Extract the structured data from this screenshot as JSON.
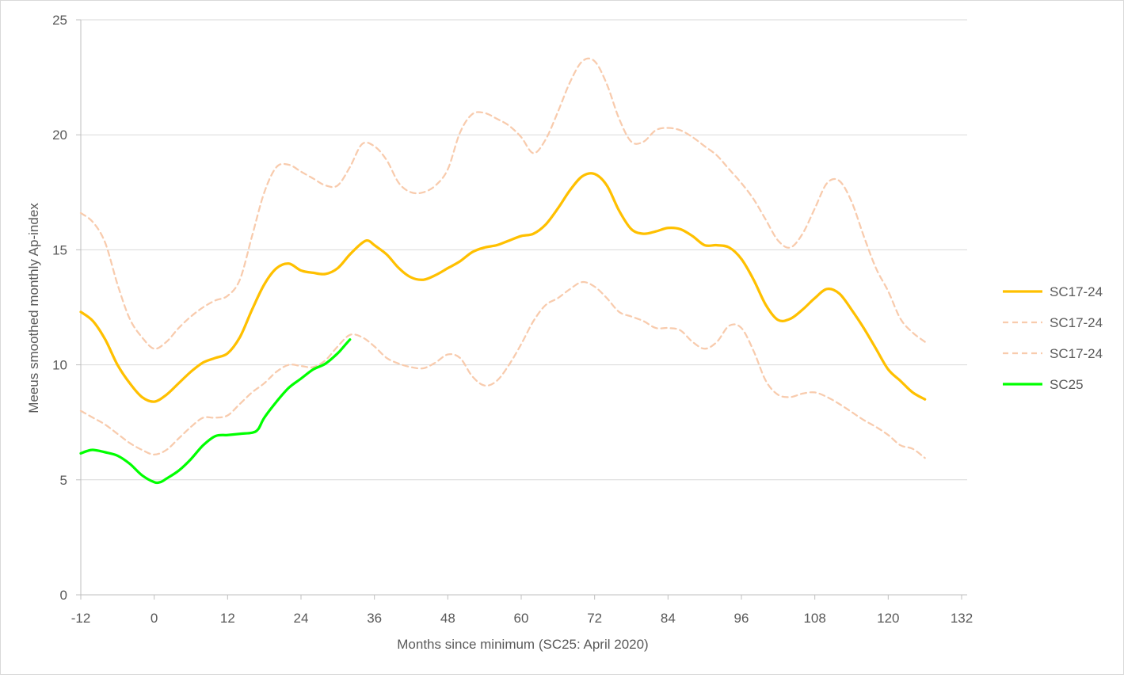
{
  "chart_data": {
    "type": "line",
    "title": "",
    "xlabel": "Months since minimum (SC25: April 2020)",
    "ylabel": "Meeus smoothed monthly Ap-index",
    "xlim": [
      -12,
      132
    ],
    "ylim": [
      0,
      25
    ],
    "x_ticks": [
      "-12",
      "0",
      "12",
      "24",
      "36",
      "48",
      "60",
      "72",
      "84",
      "96",
      "108",
      "120",
      "132"
    ],
    "x_tick_values": [
      -12,
      0,
      12,
      24,
      36,
      48,
      60,
      72,
      84,
      96,
      108,
      120,
      132
    ],
    "y_ticks": [
      "0",
      "5",
      "10",
      "15",
      "20",
      "25"
    ],
    "y_tick_values": [
      0,
      5,
      10,
      15,
      20,
      25
    ],
    "grid": "horizontal",
    "legend_position": "right",
    "series": [
      {
        "name": "SC17-24",
        "style": "solid",
        "color": "#ffc000",
        "points": [
          [
            -12,
            12.3
          ],
          [
            -10,
            11.9
          ],
          [
            -8,
            11.1
          ],
          [
            -6,
            10.0
          ],
          [
            -4,
            9.2
          ],
          [
            -2,
            8.6
          ],
          [
            0,
            8.4
          ],
          [
            2,
            8.7
          ],
          [
            4,
            9.2
          ],
          [
            6,
            9.7
          ],
          [
            8,
            10.1
          ],
          [
            10,
            10.3
          ],
          [
            12,
            10.5
          ],
          [
            14,
            11.2
          ],
          [
            16,
            12.4
          ],
          [
            18,
            13.5
          ],
          [
            20,
            14.2
          ],
          [
            22,
            14.4
          ],
          [
            24,
            14.1
          ],
          [
            26,
            14.0
          ],
          [
            28,
            13.95
          ],
          [
            30,
            14.2
          ],
          [
            32,
            14.8
          ],
          [
            34,
            15.3
          ],
          [
            35,
            15.4
          ],
          [
            36,
            15.2
          ],
          [
            38,
            14.8
          ],
          [
            40,
            14.2
          ],
          [
            42,
            13.8
          ],
          [
            44,
            13.7
          ],
          [
            46,
            13.9
          ],
          [
            48,
            14.2
          ],
          [
            50,
            14.5
          ],
          [
            52,
            14.9
          ],
          [
            54,
            15.1
          ],
          [
            56,
            15.2
          ],
          [
            58,
            15.4
          ],
          [
            60,
            15.6
          ],
          [
            62,
            15.7
          ],
          [
            64,
            16.1
          ],
          [
            66,
            16.8
          ],
          [
            68,
            17.6
          ],
          [
            70,
            18.2
          ],
          [
            72,
            18.3
          ],
          [
            74,
            17.8
          ],
          [
            76,
            16.7
          ],
          [
            78,
            15.9
          ],
          [
            80,
            15.7
          ],
          [
            82,
            15.8
          ],
          [
            84,
            15.95
          ],
          [
            86,
            15.9
          ],
          [
            88,
            15.6
          ],
          [
            90,
            15.2
          ],
          [
            92,
            15.2
          ],
          [
            94,
            15.1
          ],
          [
            96,
            14.6
          ],
          [
            98,
            13.7
          ],
          [
            100,
            12.6
          ],
          [
            102,
            11.95
          ],
          [
            104,
            12.0
          ],
          [
            106,
            12.4
          ],
          [
            108,
            12.9
          ],
          [
            110,
            13.3
          ],
          [
            112,
            13.1
          ],
          [
            114,
            12.4
          ],
          [
            116,
            11.6
          ],
          [
            118,
            10.7
          ],
          [
            120,
            9.8
          ],
          [
            122,
            9.3
          ],
          [
            124,
            8.8
          ],
          [
            126,
            8.5
          ]
        ]
      },
      {
        "name": "SC17-24",
        "style": "dashed",
        "color": "#f8cbad",
        "points": [
          [
            -12,
            16.6
          ],
          [
            -10,
            16.2
          ],
          [
            -8,
            15.3
          ],
          [
            -6,
            13.5
          ],
          [
            -4,
            12.0
          ],
          [
            -2,
            11.2
          ],
          [
            0,
            10.7
          ],
          [
            2,
            11.0
          ],
          [
            4,
            11.6
          ],
          [
            6,
            12.1
          ],
          [
            8,
            12.5
          ],
          [
            10,
            12.8
          ],
          [
            12,
            13.0
          ],
          [
            14,
            13.7
          ],
          [
            16,
            15.6
          ],
          [
            18,
            17.5
          ],
          [
            20,
            18.6
          ],
          [
            22,
            18.7
          ],
          [
            24,
            18.4
          ],
          [
            26,
            18.1
          ],
          [
            28,
            17.8
          ],
          [
            30,
            17.8
          ],
          [
            32,
            18.6
          ],
          [
            34,
            19.6
          ],
          [
            36,
            19.5
          ],
          [
            38,
            18.9
          ],
          [
            40,
            17.9
          ],
          [
            42,
            17.5
          ],
          [
            44,
            17.5
          ],
          [
            46,
            17.8
          ],
          [
            48,
            18.5
          ],
          [
            50,
            20.1
          ],
          [
            52,
            20.9
          ],
          [
            54,
            20.95
          ],
          [
            56,
            20.7
          ],
          [
            58,
            20.4
          ],
          [
            60,
            19.9
          ],
          [
            62,
            19.2
          ],
          [
            64,
            19.8
          ],
          [
            66,
            21.0
          ],
          [
            68,
            22.3
          ],
          [
            70,
            23.2
          ],
          [
            72,
            23.2
          ],
          [
            74,
            22.2
          ],
          [
            76,
            20.7
          ],
          [
            78,
            19.7
          ],
          [
            80,
            19.7
          ],
          [
            82,
            20.2
          ],
          [
            84,
            20.3
          ],
          [
            86,
            20.2
          ],
          [
            88,
            19.9
          ],
          [
            90,
            19.5
          ],
          [
            92,
            19.1
          ],
          [
            94,
            18.5
          ],
          [
            96,
            17.9
          ],
          [
            98,
            17.2
          ],
          [
            100,
            16.3
          ],
          [
            102,
            15.4
          ],
          [
            104,
            15.1
          ],
          [
            106,
            15.7
          ],
          [
            108,
            16.8
          ],
          [
            110,
            17.9
          ],
          [
            112,
            18.0
          ],
          [
            114,
            17.1
          ],
          [
            116,
            15.6
          ],
          [
            118,
            14.2
          ],
          [
            120,
            13.2
          ],
          [
            122,
            12.0
          ],
          [
            124,
            11.4
          ],
          [
            126,
            11.0
          ]
        ]
      },
      {
        "name": "SC17-24",
        "style": "dashed",
        "color": "#f8cbad",
        "points": [
          [
            -12,
            8.0
          ],
          [
            -10,
            7.7
          ],
          [
            -8,
            7.4
          ],
          [
            -6,
            7.0
          ],
          [
            -4,
            6.6
          ],
          [
            -2,
            6.3
          ],
          [
            0,
            6.1
          ],
          [
            2,
            6.3
          ],
          [
            4,
            6.8
          ],
          [
            6,
            7.3
          ],
          [
            8,
            7.7
          ],
          [
            10,
            7.7
          ],
          [
            12,
            7.8
          ],
          [
            14,
            8.3
          ],
          [
            16,
            8.8
          ],
          [
            18,
            9.2
          ],
          [
            20,
            9.7
          ],
          [
            22,
            10.0
          ],
          [
            24,
            9.95
          ],
          [
            26,
            9.9
          ],
          [
            28,
            10.2
          ],
          [
            30,
            10.8
          ],
          [
            32,
            11.3
          ],
          [
            34,
            11.2
          ],
          [
            36,
            10.8
          ],
          [
            38,
            10.3
          ],
          [
            40,
            10.05
          ],
          [
            42,
            9.9
          ],
          [
            44,
            9.85
          ],
          [
            46,
            10.1
          ],
          [
            48,
            10.45
          ],
          [
            50,
            10.3
          ],
          [
            52,
            9.5
          ],
          [
            54,
            9.1
          ],
          [
            56,
            9.3
          ],
          [
            58,
            10.0
          ],
          [
            60,
            10.9
          ],
          [
            62,
            11.9
          ],
          [
            64,
            12.6
          ],
          [
            66,
            12.9
          ],
          [
            68,
            13.3
          ],
          [
            70,
            13.6
          ],
          [
            72,
            13.4
          ],
          [
            74,
            12.9
          ],
          [
            76,
            12.3
          ],
          [
            78,
            12.1
          ],
          [
            80,
            11.9
          ],
          [
            82,
            11.6
          ],
          [
            84,
            11.6
          ],
          [
            86,
            11.5
          ],
          [
            88,
            11.0
          ],
          [
            90,
            10.7
          ],
          [
            92,
            11.0
          ],
          [
            94,
            11.7
          ],
          [
            96,
            11.6
          ],
          [
            98,
            10.6
          ],
          [
            100,
            9.3
          ],
          [
            102,
            8.7
          ],
          [
            104,
            8.6
          ],
          [
            106,
            8.75
          ],
          [
            108,
            8.8
          ],
          [
            110,
            8.6
          ],
          [
            112,
            8.3
          ],
          [
            114,
            7.95
          ],
          [
            116,
            7.6
          ],
          [
            118,
            7.3
          ],
          [
            120,
            6.95
          ],
          [
            122,
            6.5
          ],
          [
            124,
            6.35
          ],
          [
            126,
            5.95
          ]
        ]
      },
      {
        "name": "SC25",
        "style": "solid",
        "color": "#00ff00",
        "points": [
          [
            -12,
            6.15
          ],
          [
            -11,
            6.25
          ],
          [
            -10,
            6.3
          ],
          [
            -8,
            6.2
          ],
          [
            -6,
            6.05
          ],
          [
            -4,
            5.7
          ],
          [
            -2,
            5.2
          ],
          [
            0,
            4.9
          ],
          [
            1,
            4.9
          ],
          [
            2,
            5.05
          ],
          [
            4,
            5.4
          ],
          [
            6,
            5.9
          ],
          [
            8,
            6.5
          ],
          [
            10,
            6.9
          ],
          [
            12,
            6.95
          ],
          [
            14,
            7.0
          ],
          [
            16,
            7.05
          ],
          [
            17,
            7.2
          ],
          [
            18,
            7.7
          ],
          [
            20,
            8.4
          ],
          [
            22,
            9.0
          ],
          [
            24,
            9.4
          ],
          [
            26,
            9.8
          ],
          [
            28,
            10.05
          ],
          [
            30,
            10.5
          ],
          [
            31,
            10.8
          ],
          [
            32,
            11.1
          ]
        ]
      }
    ]
  }
}
